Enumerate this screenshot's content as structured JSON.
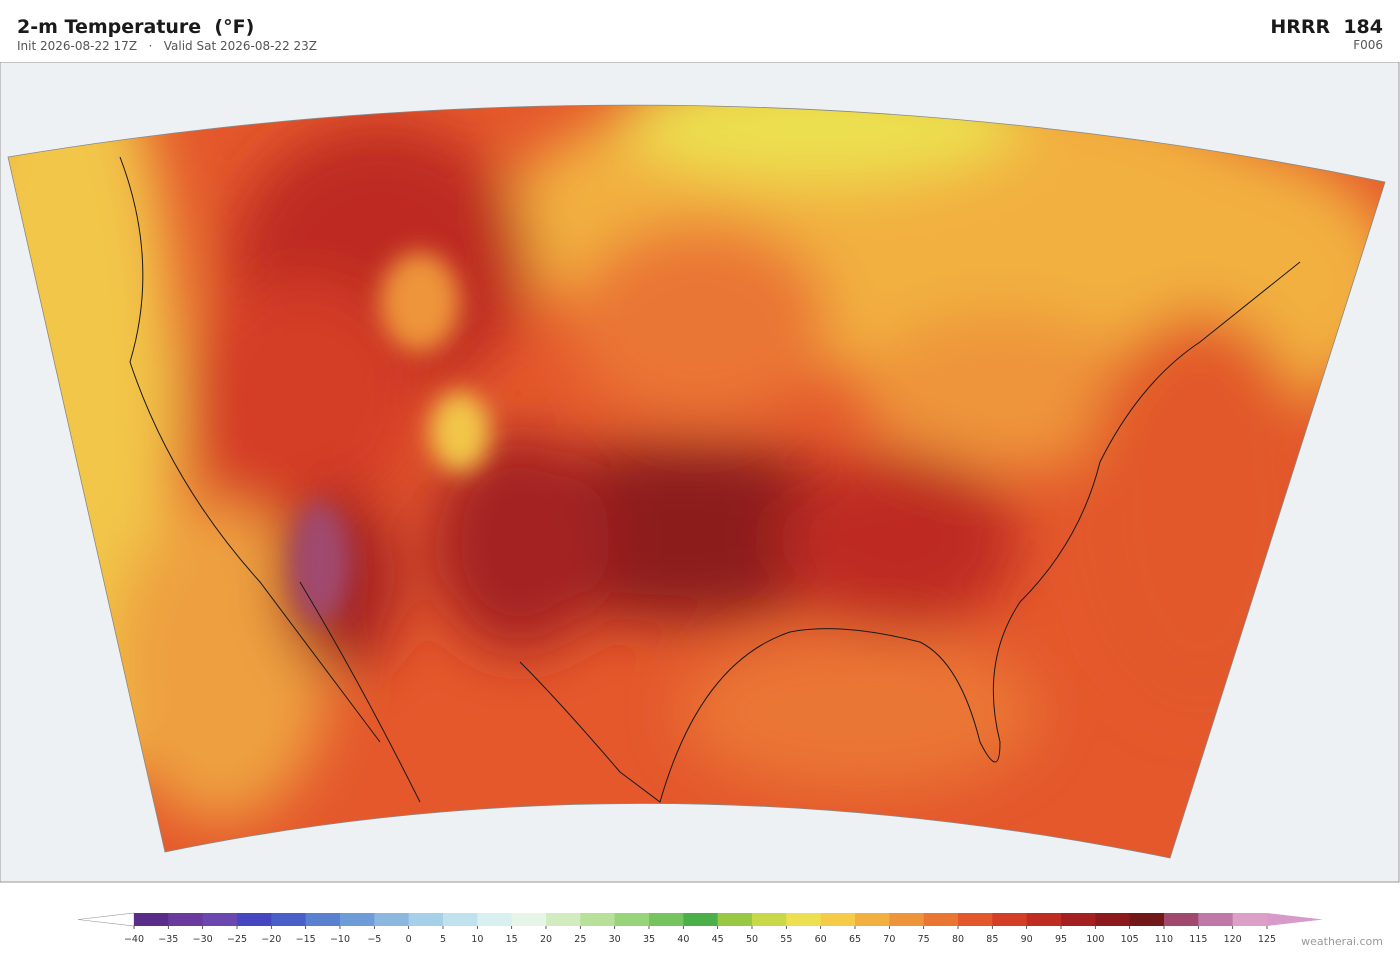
{
  "header": {
    "title": "2-m Temperature  (°F)",
    "subtitle": "Init 2026-08-22 17Z   ·   Valid Sat 2026-08-22 23Z",
    "model": "HRRR  184",
    "forecast_hour": "F006"
  },
  "colorbar": {
    "ticks": [
      {
        "value": -40,
        "label": "−40"
      },
      {
        "value": -35,
        "label": "−35"
      },
      {
        "value": -30,
        "label": "−30"
      },
      {
        "value": -25,
        "label": "−25"
      },
      {
        "value": -20,
        "label": "−20"
      },
      {
        "value": -15,
        "label": "−15"
      },
      {
        "value": -10,
        "label": "−10"
      },
      {
        "value": -5,
        "label": "−5"
      },
      0,
      5,
      10,
      15,
      20,
      25,
      30,
      35,
      40,
      45,
      50,
      55,
      60,
      65,
      70,
      75,
      80,
      85,
      90,
      95,
      100,
      105,
      110,
      115,
      120,
      125
    ],
    "colors": [
      "#5a2d8a",
      "#6a3a9e",
      "#6a48b0",
      "#4646c0",
      "#4a60c8",
      "#5a80d0",
      "#6e9cd8",
      "#8cb8e0",
      "#a6d0e8",
      "#bfe2ee",
      "#d8f0f2",
      "#e6f6e6",
      "#d2ecc0",
      "#b8e098",
      "#98d47a",
      "#76c460",
      "#4cb04a",
      "#98c844",
      "#c8d848",
      "#ece050",
      "#f4cc4a",
      "#f2b040",
      "#ee943a",
      "#ea7634",
      "#e2582c",
      "#d43e26",
      "#be2c22",
      "#a42020",
      "#8c1a1c",
      "#721818",
      "#a0486e",
      "#c078a8",
      "#dca0c8"
    ],
    "under_color": "#ffffff",
    "over_color": "#d89ac8"
  },
  "footer": {
    "credit": "weatherai.com"
  }
}
